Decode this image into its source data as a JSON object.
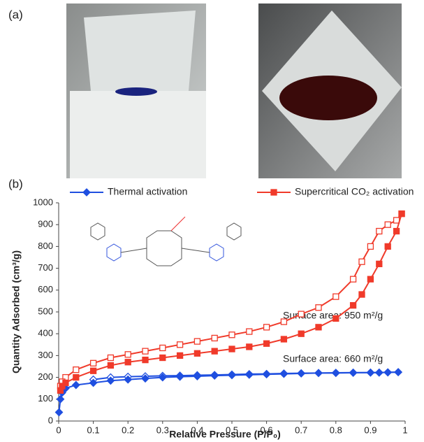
{
  "panel_labels": [
    "(a)",
    "(b)"
  ],
  "chart_data": {
    "type": "line",
    "x_label": "Relative Pressure (P/P₀)",
    "y_label": "Quantity Adsorbed (cm³/g)",
    "xlim": [
      0,
      1
    ],
    "xticks": [
      0,
      0.1,
      0.2,
      0.3,
      0.4,
      0.5,
      0.6,
      0.7,
      0.8,
      0.9,
      1
    ],
    "ylim": [
      0,
      1000
    ],
    "yticks": [
      0,
      100,
      200,
      300,
      400,
      500,
      600,
      700,
      800,
      900,
      1000
    ],
    "annotations": [
      "Surface area: 950 m²/g",
      "Surface area: 660 m²/g"
    ],
    "series": [
      {
        "name": "Thermal activation",
        "color": "#1f4fe0",
        "marker": "diamond",
        "x": [
          0.001,
          0.005,
          0.01,
          0.02,
          0.05,
          0.1,
          0.15,
          0.2,
          0.25,
          0.3,
          0.35,
          0.4,
          0.45,
          0.5,
          0.55,
          0.6,
          0.65,
          0.7,
          0.75,
          0.8,
          0.85,
          0.9,
          0.925,
          0.95,
          0.98
        ],
        "values": [
          40,
          100,
          130,
          150,
          165,
          175,
          185,
          190,
          195,
          200,
          203,
          205,
          208,
          210,
          212,
          214,
          216,
          218,
          220,
          220,
          221,
          222,
          222,
          223,
          224
        ],
        "desorption": {
          "x": [
            0.98,
            0.95,
            0.925,
            0.9,
            0.85,
            0.8,
            0.75,
            0.7,
            0.65,
            0.6,
            0.55,
            0.5,
            0.45,
            0.4,
            0.35,
            0.3,
            0.25,
            0.2,
            0.15,
            0.1
          ],
          "values": [
            224,
            223,
            222,
            222,
            222,
            221,
            220,
            219,
            218,
            216,
            215,
            213,
            211,
            210,
            208,
            207,
            205,
            203,
            200,
            190
          ]
        }
      },
      {
        "name": "Supercritical CO₂ activation",
        "color": "#f03a2a",
        "marker": "square",
        "x": [
          0.005,
          0.01,
          0.02,
          0.05,
          0.1,
          0.15,
          0.2,
          0.25,
          0.3,
          0.35,
          0.4,
          0.45,
          0.5,
          0.55,
          0.6,
          0.65,
          0.7,
          0.75,
          0.8,
          0.85,
          0.875,
          0.9,
          0.925,
          0.95,
          0.975,
          0.99
        ],
        "values": [
          140,
          160,
          175,
          200,
          230,
          255,
          270,
          280,
          290,
          300,
          310,
          320,
          330,
          340,
          355,
          375,
          400,
          430,
          470,
          530,
          580,
          650,
          720,
          800,
          870,
          950
        ],
        "desorption": {
          "x": [
            0.99,
            0.975,
            0.95,
            0.925,
            0.9,
            0.875,
            0.85,
            0.8,
            0.75,
            0.7,
            0.65,
            0.6,
            0.55,
            0.5,
            0.45,
            0.4,
            0.35,
            0.3,
            0.25,
            0.2,
            0.15,
            0.1,
            0.05,
            0.02,
            0.01,
            0.005
          ],
          "values": [
            950,
            920,
            900,
            870,
            800,
            730,
            650,
            570,
            520,
            490,
            455,
            430,
            410,
            395,
            380,
            365,
            350,
            335,
            320,
            305,
            290,
            265,
            235,
            200,
            180,
            160
          ]
        }
      }
    ]
  }
}
